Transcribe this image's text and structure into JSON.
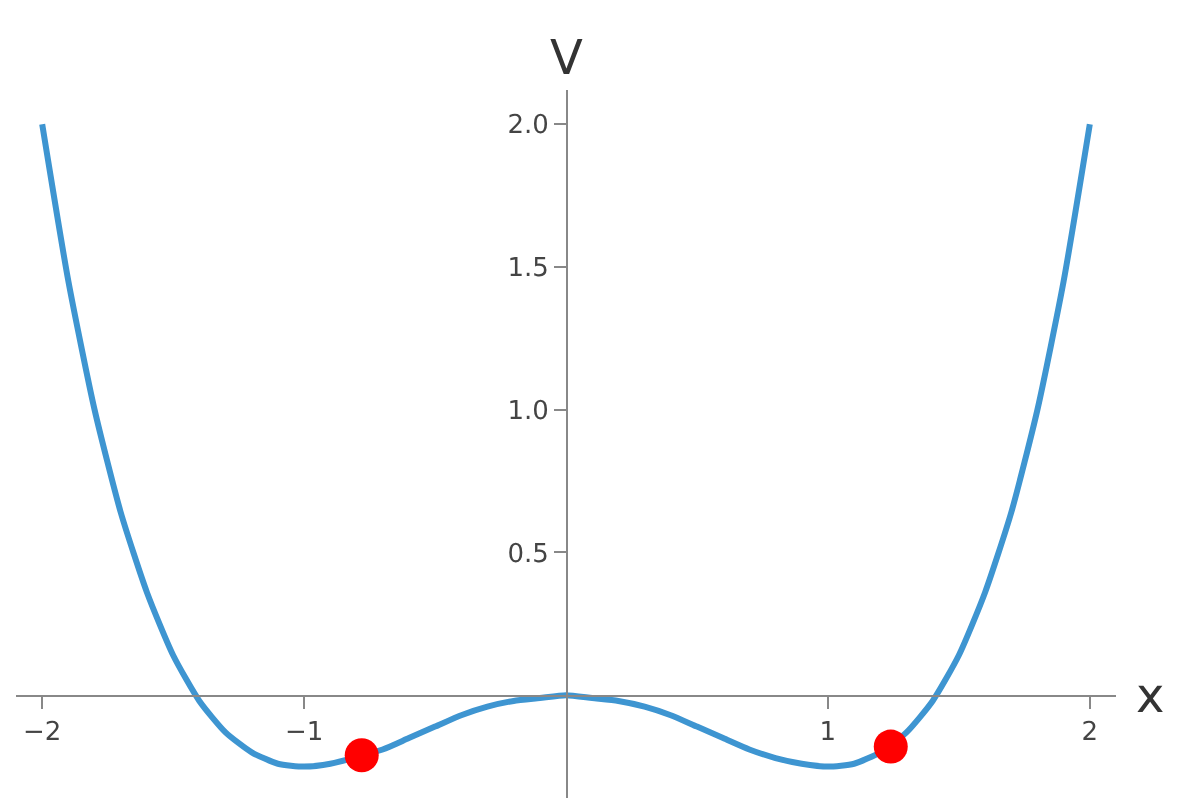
{
  "chart_data": {
    "type": "line",
    "xlabel": "x",
    "ylabel": "V",
    "xlim": [
      -2.1,
      2.1
    ],
    "ylim": [
      -0.36,
      2.12
    ],
    "xticks": [
      -2,
      -1,
      1,
      2
    ],
    "yticks": [
      0.5,
      {
        "value": 1,
        "label": "1.0"
      },
      1.5,
      {
        "value": 2,
        "label": "2.0"
      }
    ],
    "series": [
      {
        "color": "#3e95d1",
        "x": [
          -2,
          -1.9,
          -1.8,
          -1.7,
          -1.6,
          -1.5,
          -1.4,
          -1.3,
          -1.2,
          -1.1,
          -1,
          -0.9,
          -0.7,
          -0.6,
          -0.5,
          -0.4,
          -0.3,
          -0.2,
          -0.1,
          0,
          0.1,
          0.2,
          0.3,
          0.4,
          0.5,
          0.6,
          0.7,
          0.8,
          0.9,
          1,
          1.1,
          1.2,
          1.3,
          1.4,
          1.5,
          1.6,
          1.7,
          1.8,
          1.9,
          2
        ],
        "values": [
          2.0,
          1.45,
          1.0,
          0.64,
          0.36,
          0.14,
          -0.02,
          -0.13,
          -0.2,
          -0.24,
          -0.25,
          -0.24,
          -0.19,
          -0.15,
          -0.11,
          -0.07,
          -0.04,
          -0.02,
          -0.01,
          0,
          -0.01,
          -0.02,
          -0.04,
          -0.07,
          -0.11,
          -0.15,
          -0.19,
          -0.22,
          -0.24,
          -0.25,
          -0.24,
          -0.2,
          -0.13,
          -0.02,
          0.14,
          0.36,
          0.64,
          1.0,
          1.45,
          2.0
        ]
      },
      {
        "type": "scatter",
        "color": "#ff0000",
        "marker": "circle",
        "x": [
          -0.78,
          1.24
        ],
        "values": [
          -0.21,
          -0.18
        ]
      }
    ],
    "grid": false,
    "legend": false
  }
}
